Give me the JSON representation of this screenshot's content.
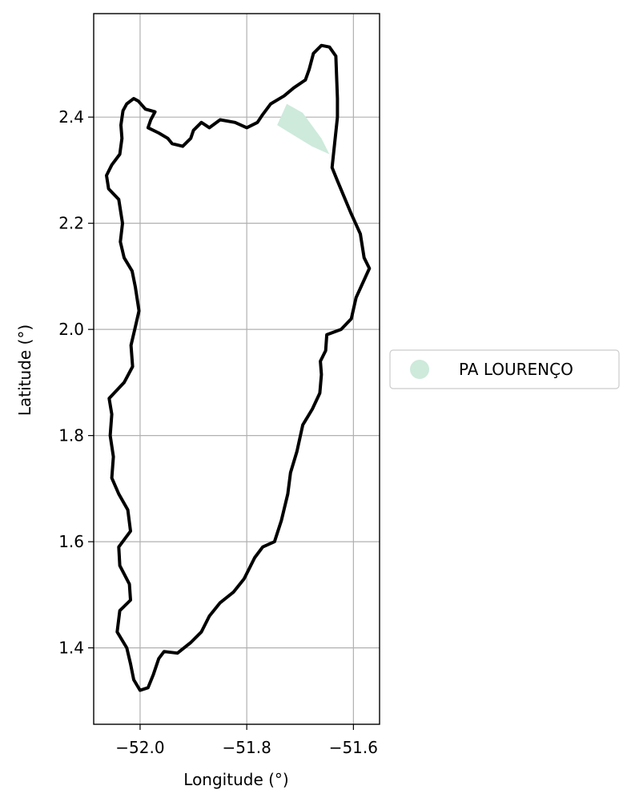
{
  "chart_data": {
    "type": "map",
    "xlabel": "Longitude (°)",
    "ylabel": "Latitude (°)",
    "xlim": [
      -52.087,
      -51.551
    ],
    "ylim": [
      1.256,
      2.595
    ],
    "grid": true,
    "x_ticks": [
      {
        "value": -52.0,
        "label": "−52.0"
      },
      {
        "value": -51.8,
        "label": "−51.8"
      },
      {
        "value": -51.6,
        "label": "−51.6"
      }
    ],
    "y_ticks": [
      {
        "value": 1.4,
        "label": "1.4"
      },
      {
        "value": 1.6,
        "label": "1.6"
      },
      {
        "value": 1.8,
        "label": "1.8"
      },
      {
        "value": 2.0,
        "label": "2.0"
      },
      {
        "value": 2.2,
        "label": "2.2"
      },
      {
        "value": 2.4,
        "label": "2.4"
      }
    ],
    "legend": {
      "placement": "right",
      "entries": [
        {
          "name": "PA LOURENÇO",
          "color": "#cdeadb"
        }
      ]
    },
    "boundary": {
      "color": "#000000",
      "points": [
        [
          -52.032,
          2.412
        ],
        [
          -52.036,
          2.385
        ],
        [
          -52.034,
          2.36
        ],
        [
          -52.038,
          2.33
        ],
        [
          -52.053,
          2.31
        ],
        [
          -52.063,
          2.29
        ],
        [
          -52.059,
          2.265
        ],
        [
          -52.04,
          2.245
        ],
        [
          -52.033,
          2.2
        ],
        [
          -52.037,
          2.165
        ],
        [
          -52.03,
          2.135
        ],
        [
          -52.015,
          2.11
        ],
        [
          -52.009,
          2.08
        ],
        [
          -52.002,
          2.035
        ],
        [
          -52.01,
          2.0
        ],
        [
          -52.017,
          1.97
        ],
        [
          -52.014,
          1.93
        ],
        [
          -52.03,
          1.9
        ],
        [
          -52.058,
          1.87
        ],
        [
          -52.053,
          1.84
        ],
        [
          -52.056,
          1.8
        ],
        [
          -52.05,
          1.76
        ],
        [
          -52.053,
          1.72
        ],
        [
          -52.04,
          1.69
        ],
        [
          -52.023,
          1.66
        ],
        [
          -52.018,
          1.62
        ],
        [
          -52.04,
          1.59
        ],
        [
          -52.038,
          1.555
        ],
        [
          -52.02,
          1.52
        ],
        [
          -52.018,
          1.49
        ],
        [
          -52.038,
          1.47
        ],
        [
          -52.043,
          1.43
        ],
        [
          -52.025,
          1.4
        ],
        [
          -52.018,
          1.37
        ],
        [
          -52.012,
          1.34
        ],
        [
          -52.0,
          1.32
        ],
        [
          -51.985,
          1.325
        ],
        [
          -51.975,
          1.35
        ],
        [
          -51.965,
          1.38
        ],
        [
          -51.955,
          1.393
        ],
        [
          -51.93,
          1.39
        ],
        [
          -51.905,
          1.41
        ],
        [
          -51.885,
          1.43
        ],
        [
          -51.87,
          1.46
        ],
        [
          -51.85,
          1.485
        ],
        [
          -51.825,
          1.505
        ],
        [
          -51.805,
          1.53
        ],
        [
          -51.785,
          1.57
        ],
        [
          -51.77,
          1.59
        ],
        [
          -51.748,
          1.6
        ],
        [
          -51.735,
          1.64
        ],
        [
          -51.723,
          1.69
        ],
        [
          -51.718,
          1.73
        ],
        [
          -51.706,
          1.77
        ],
        [
          -51.695,
          1.82
        ],
        [
          -51.677,
          1.85
        ],
        [
          -51.663,
          1.88
        ],
        [
          -51.66,
          1.915
        ],
        [
          -51.662,
          1.94
        ],
        [
          -51.652,
          1.96
        ],
        [
          -51.65,
          1.99
        ],
        [
          -51.623,
          2.0
        ],
        [
          -51.604,
          2.02
        ],
        [
          -51.595,
          2.06
        ],
        [
          -51.57,
          2.115
        ],
        [
          -51.58,
          2.135
        ],
        [
          -51.587,
          2.18
        ],
        [
          -51.605,
          2.22
        ],
        [
          -51.63,
          2.28
        ],
        [
          -51.64,
          2.305
        ],
        [
          -51.63,
          2.4
        ],
        [
          -51.63,
          2.435
        ],
        [
          -51.633,
          2.515
        ],
        [
          -51.645,
          2.532
        ],
        [
          -51.66,
          2.535
        ],
        [
          -51.675,
          2.52
        ],
        [
          -51.683,
          2.49
        ],
        [
          -51.69,
          2.47
        ],
        [
          -51.712,
          2.455
        ],
        [
          -51.73,
          2.44
        ],
        [
          -51.755,
          2.425
        ],
        [
          -51.77,
          2.405
        ],
        [
          -51.78,
          2.39
        ],
        [
          -51.8,
          2.38
        ],
        [
          -51.822,
          2.39
        ],
        [
          -51.85,
          2.395
        ],
        [
          -51.87,
          2.38
        ],
        [
          -51.885,
          2.39
        ],
        [
          -51.9,
          2.375
        ],
        [
          -51.905,
          2.36
        ],
        [
          -51.92,
          2.345
        ],
        [
          -51.94,
          2.35
        ],
        [
          -51.948,
          2.36
        ],
        [
          -51.965,
          2.37
        ],
        [
          -51.985,
          2.38
        ],
        [
          -51.98,
          2.395
        ],
        [
          -51.972,
          2.41
        ],
        [
          -51.99,
          2.415
        ],
        [
          -52.003,
          2.43
        ],
        [
          -52.012,
          2.435
        ],
        [
          -52.025,
          2.425
        ],
        [
          -52.032,
          2.412
        ]
      ]
    },
    "region": {
      "name": "PA LOURENÇO",
      "color": "#cdeadb",
      "points": [
        [
          -51.743,
          2.385
        ],
        [
          -51.725,
          2.425
        ],
        [
          -51.695,
          2.408
        ],
        [
          -51.66,
          2.36
        ],
        [
          -51.645,
          2.33
        ],
        [
          -51.678,
          2.345
        ],
        [
          -51.743,
          2.385
        ]
      ]
    }
  }
}
